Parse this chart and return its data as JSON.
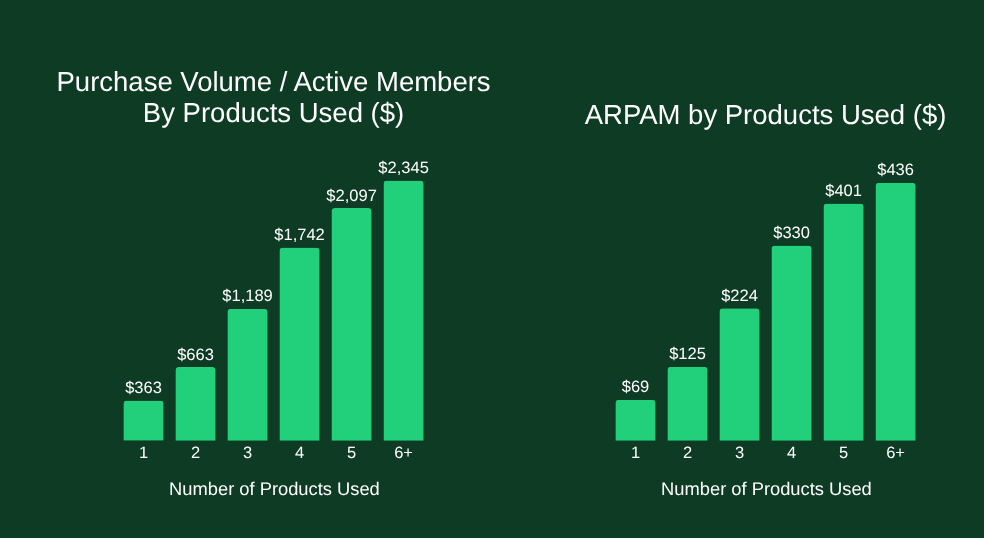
{
  "chart_data": [
    {
      "type": "bar",
      "title": "Purchase Volume / Active Members\nBy Products Used ($)",
      "xlabel": "Number of Products Used",
      "categories": [
        "1",
        "2",
        "3",
        "4",
        "5",
        "6+"
      ],
      "values": [
        363,
        663,
        1189,
        1742,
        2097,
        2345
      ],
      "value_labels": [
        "$363",
        "$663",
        "$1,189",
        "$1,742",
        "$2,097",
        "$2,345"
      ],
      "color": "#22d07c",
      "grid": false
    },
    {
      "type": "bar",
      "title": "ARPAM by Products Used ($)",
      "xlabel": "Number of Products Used",
      "categories": [
        "1",
        "2",
        "3",
        "4",
        "5",
        "6+"
      ],
      "values": [
        69,
        125,
        224,
        330,
        401,
        436
      ],
      "value_labels": [
        "$69",
        "$125",
        "$224",
        "$330",
        "$401",
        "$436"
      ],
      "color": "#22d07c",
      "grid": false
    }
  ]
}
